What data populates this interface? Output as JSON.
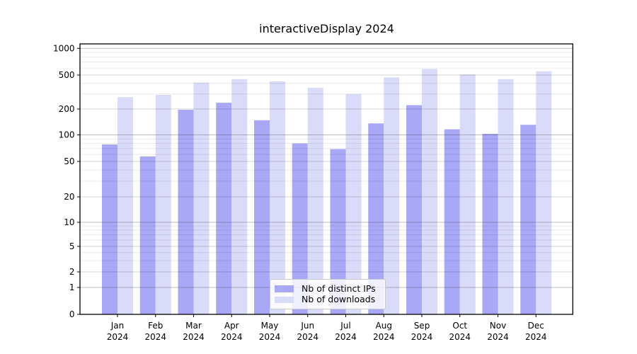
{
  "title": "interactiveDisplay 2024",
  "colors": {
    "distinct_ips": "#a8a8f6",
    "downloads": "#dadaf9",
    "grid_major": "rgba(40,40,40,0.30)",
    "grid_mid": "rgba(0,0,0,0.16)",
    "grid_minor": "rgba(0,0,0,0.085)",
    "axis": "#000000",
    "background": "#ffffff"
  },
  "legend": {
    "items": [
      {
        "label": "Nb of distinct IPs",
        "color": "#a8a8f6"
      },
      {
        "label": "Nb of downloads",
        "color": "#dadaf9"
      }
    ]
  },
  "chart_data": {
    "type": "bar",
    "title": "interactiveDisplay 2024",
    "xlabel": "",
    "ylabel": "",
    "categories": [
      "Jan",
      "Feb",
      "Mar",
      "Apr",
      "May",
      "Jun",
      "Jul",
      "Aug",
      "Sep",
      "Oct",
      "Nov",
      "Dec"
    ],
    "category_year": "2024",
    "series": [
      {
        "name": "Nb of distinct IPs",
        "values": [
          78,
          57,
          196,
          237,
          148,
          80,
          69,
          136,
          222,
          116,
          103,
          131
        ]
      },
      {
        "name": "Nb of downloads",
        "values": [
          275,
          293,
          408,
          448,
          421,
          355,
          300,
          469,
          586,
          509,
          448,
          551
        ]
      }
    ],
    "y_scale": "symlog",
    "y_tick_values": [
      0,
      1,
      2,
      5,
      10,
      20,
      50,
      100,
      200,
      500,
      1000
    ],
    "y_tick_labels": [
      "0",
      "1",
      "2",
      "5",
      "10",
      "20",
      "50",
      "100",
      "200",
      "500",
      "1000"
    ],
    "ylim": [
      0,
      1150
    ],
    "grid": "both",
    "legend_position": "inside lower-center"
  }
}
